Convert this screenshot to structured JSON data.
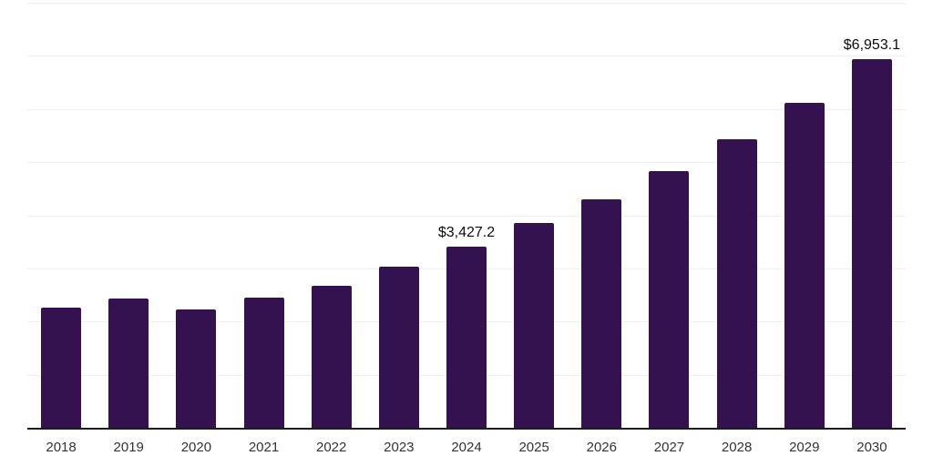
{
  "chart_data": {
    "type": "bar",
    "title": "",
    "xlabel": "",
    "ylabel": "",
    "categories": [
      "2018",
      "2019",
      "2020",
      "2021",
      "2022",
      "2023",
      "2024",
      "2025",
      "2026",
      "2027",
      "2028",
      "2029",
      "2030"
    ],
    "values": [
      2280,
      2450,
      2245,
      2475,
      2690,
      3050,
      3427.2,
      3865,
      4325,
      4855,
      5450,
      6140,
      6953.1
    ],
    "point_labels": [
      "",
      "",
      "",
      "",
      "",
      "",
      "$3,427.2",
      "",
      "",
      "",
      "",
      "",
      "$6,953.1"
    ],
    "ylim": [
      0,
      8000
    ],
    "grid": {
      "visible": true,
      "step": 1000
    },
    "legend_position": "none",
    "colors": {
      "bar": "#34124F",
      "gridline": "#f0f0f2",
      "axis_line": "#1c1c1c",
      "tick_label": "#333333",
      "point_label": "#0d0d0d",
      "background": "#ffffff"
    }
  }
}
